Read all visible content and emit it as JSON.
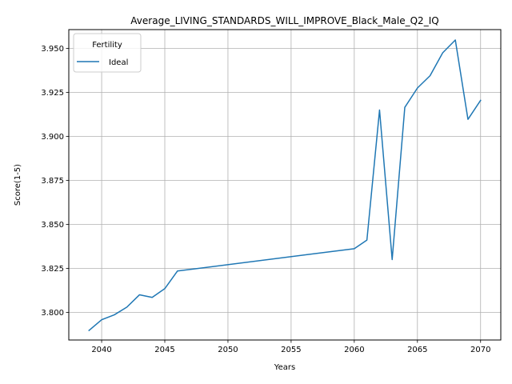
{
  "chart_data": {
    "type": "line",
    "title": "Average_LIVING_STANDARDS_WILL_IMPROVE_Black_Male_Q2_IQ",
    "xlabel": "Years",
    "ylabel": "Score(1-5)",
    "xlim": [
      2037.4,
      2071.6
    ],
    "ylim": [
      3.7843,
      3.9607
    ],
    "xticks": [
      2040,
      2045,
      2050,
      2055,
      2060,
      2065,
      2070
    ],
    "xtick_labels": [
      "2040",
      "2045",
      "2050",
      "2055",
      "2060",
      "2065",
      "2070"
    ],
    "yticks": [
      3.8,
      3.825,
      3.85,
      3.875,
      3.9,
      3.925,
      3.95
    ],
    "ytick_labels": [
      "3.800",
      "3.825",
      "3.850",
      "3.875",
      "3.900",
      "3.925",
      "3.950"
    ],
    "grid": true,
    "legend": {
      "title": "Fertility",
      "placement": "top-left"
    },
    "series": [
      {
        "name": "Ideal",
        "color": "#1f77b4",
        "x": [
          2039,
          2040,
          2041,
          2042,
          2043,
          2044,
          2045,
          2046,
          2060,
          2061,
          2062,
          2063,
          2064,
          2065,
          2066,
          2067,
          2068,
          2069,
          2070
        ],
        "y": [
          3.7897,
          3.7958,
          3.7986,
          3.803,
          3.81,
          3.8085,
          3.8135,
          3.8235,
          3.8362,
          3.8411,
          3.915,
          3.83,
          3.9165,
          3.9275,
          3.9345,
          3.9475,
          3.9548,
          3.9097,
          3.9205
        ]
      }
    ]
  }
}
